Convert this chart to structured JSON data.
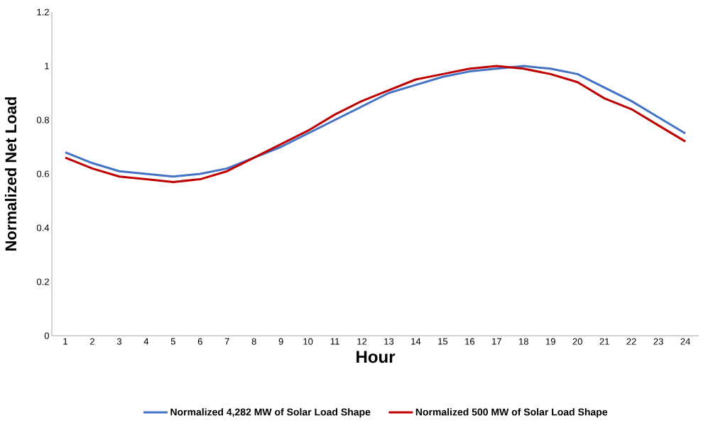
{
  "chart_data": {
    "type": "line",
    "xlabel": "Hour",
    "ylabel": "Normalized Net Load",
    "categories": [
      "1",
      "2",
      "3",
      "4",
      "5",
      "6",
      "7",
      "8",
      "9",
      "10",
      "11",
      "12",
      "13",
      "14",
      "15",
      "16",
      "17",
      "18",
      "19",
      "20",
      "21",
      "22",
      "23",
      "24"
    ],
    "series": [
      {
        "name": "Normalized 4,282 MW of Solar Load Shape",
        "color": "#4472c4",
        "values": [
          0.68,
          0.64,
          0.61,
          0.6,
          0.59,
          0.6,
          0.62,
          0.66,
          0.7,
          0.75,
          0.8,
          0.85,
          0.9,
          0.93,
          0.96,
          0.98,
          0.99,
          1.0,
          0.99,
          0.97,
          0.92,
          0.87,
          0.81,
          0.75
        ]
      },
      {
        "name": "Normalized 500 MW of Solar Load Shape",
        "color": "#c00000",
        "values": [
          0.66,
          0.62,
          0.59,
          0.58,
          0.57,
          0.58,
          0.61,
          0.66,
          0.71,
          0.76,
          0.82,
          0.87,
          0.91,
          0.95,
          0.97,
          0.99,
          1.0,
          0.99,
          0.97,
          0.94,
          0.88,
          0.84,
          0.78,
          0.72
        ]
      }
    ],
    "ylim": [
      0,
      1.2
    ],
    "yticks": [
      0,
      0.2,
      0.4,
      0.6,
      0.8,
      1,
      1.2
    ],
    "legend": "bottom",
    "marker": "none",
    "line_style": "solid"
  }
}
